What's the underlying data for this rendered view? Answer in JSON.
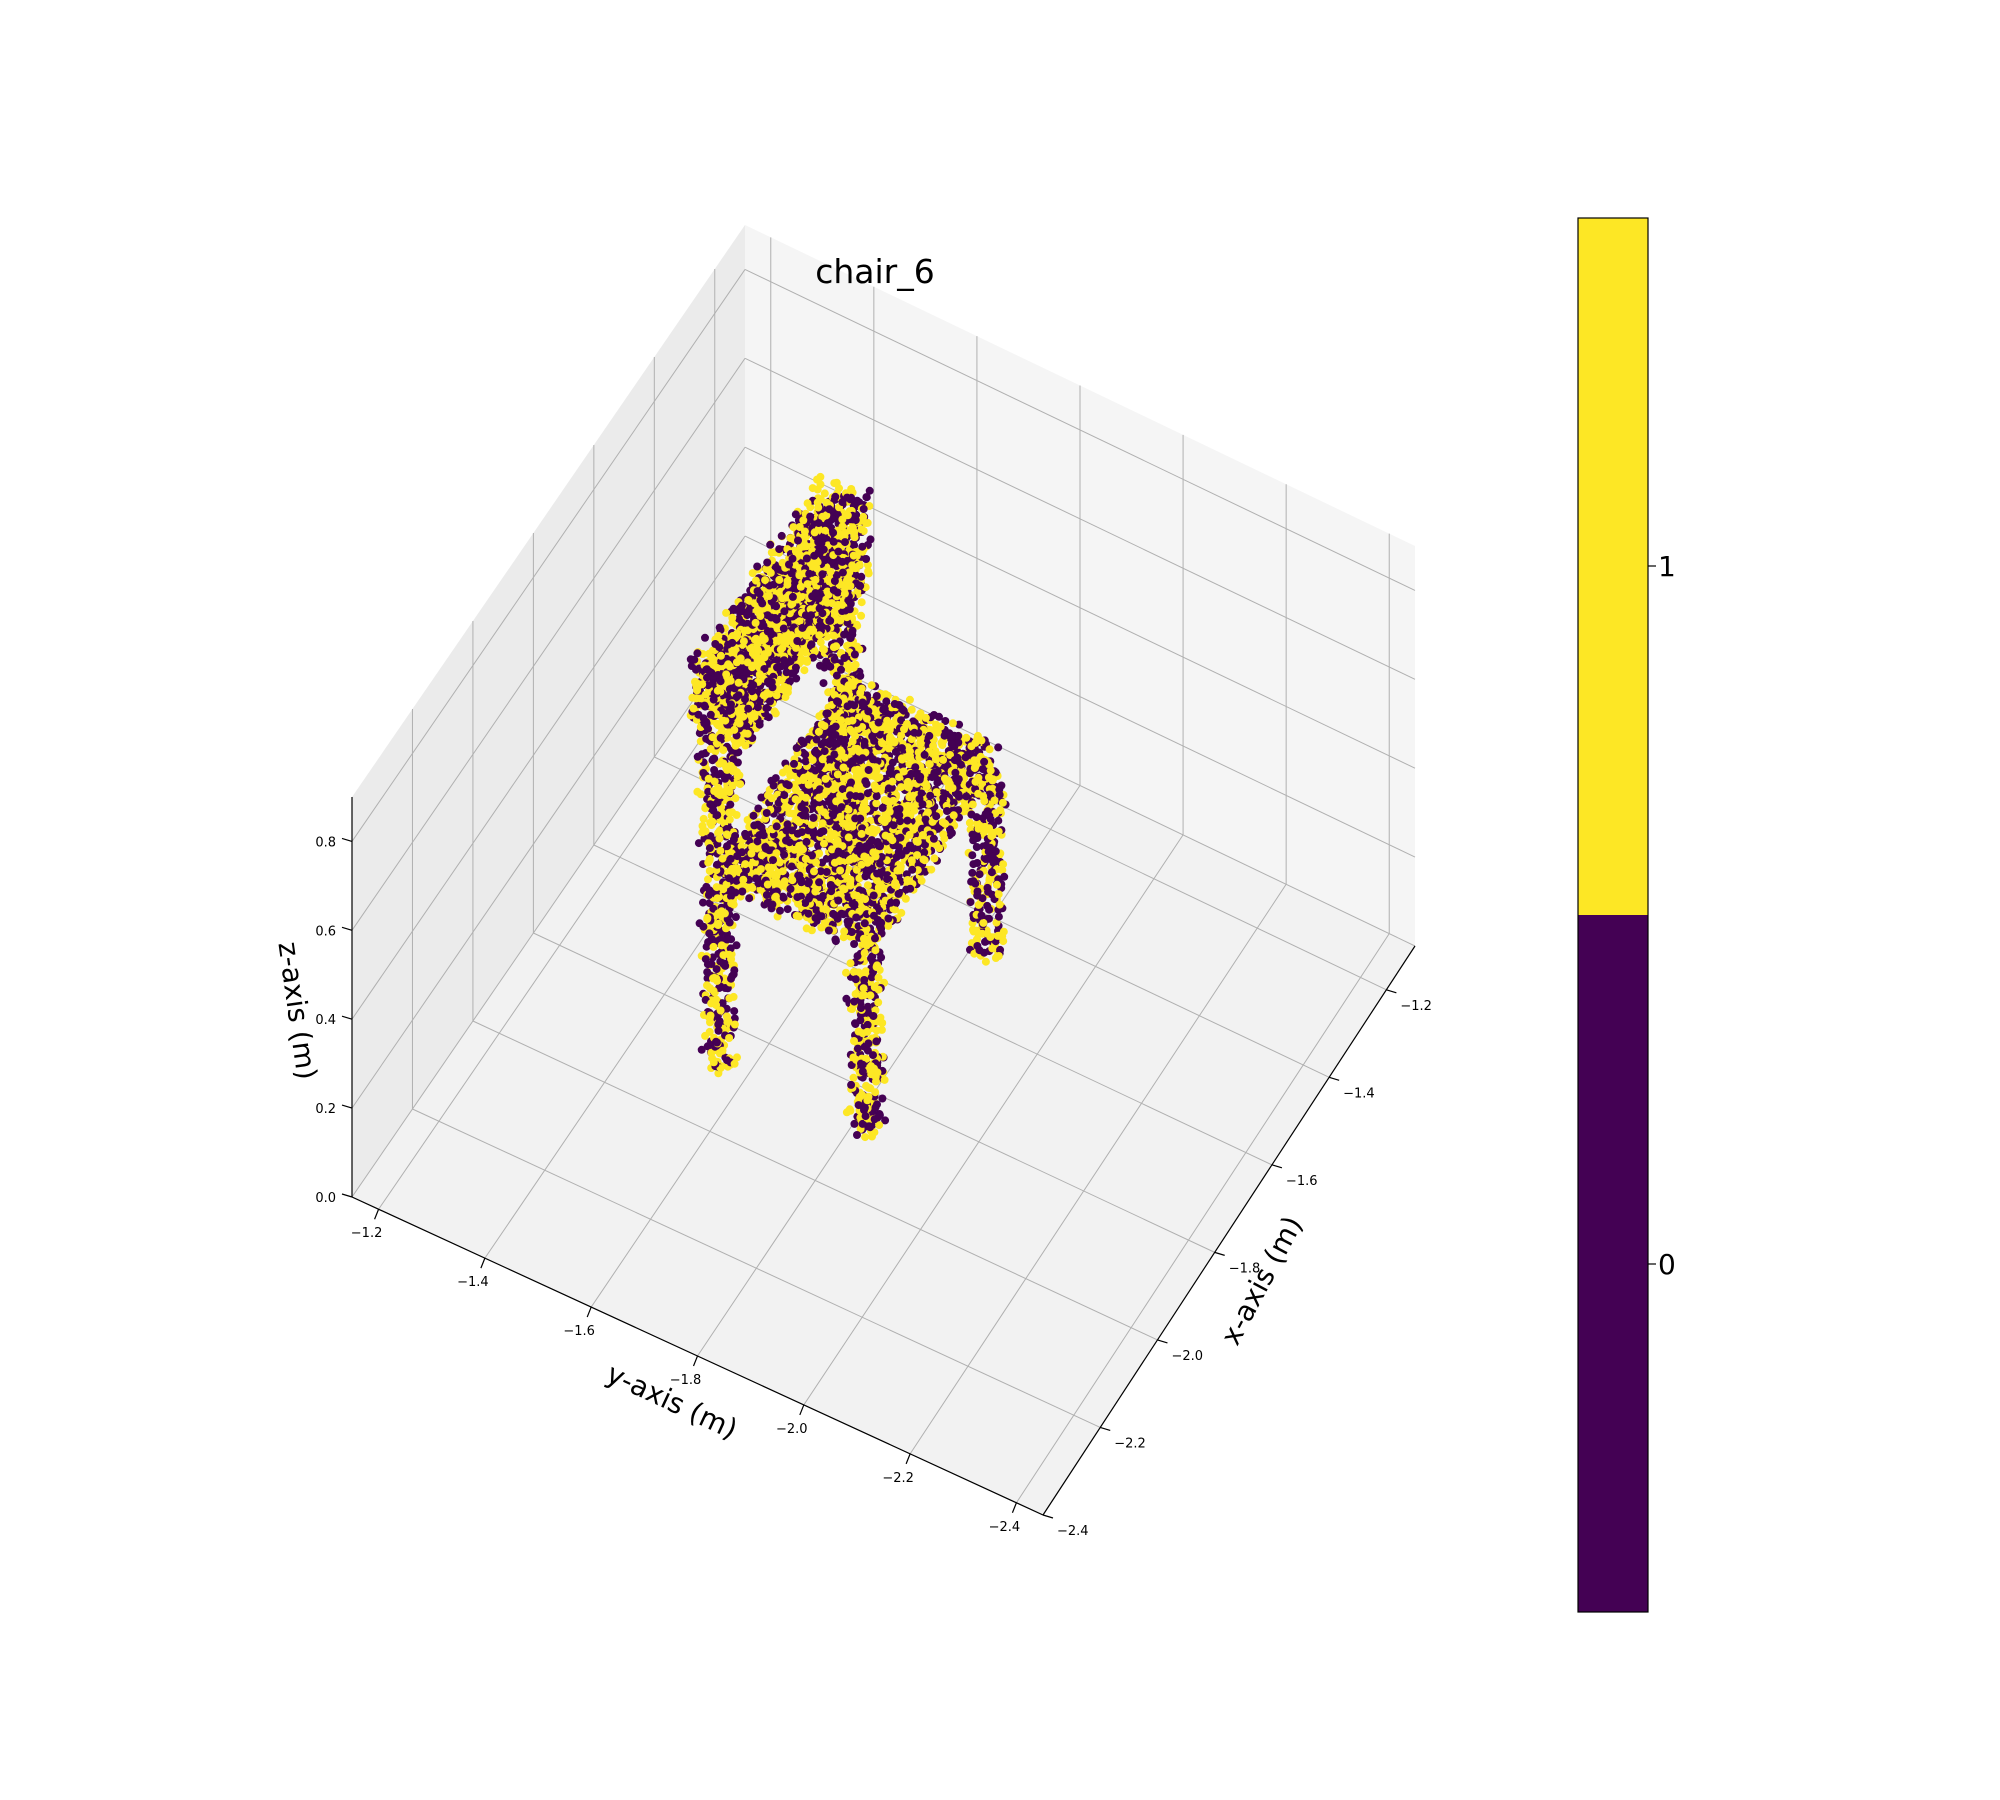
{
  "chart_data": {
    "type": "scatter",
    "projection": "3d",
    "title": "chair_6",
    "xlabel": "x-axis (m)",
    "ylabel": "y-axis (m)",
    "zlabel": "z-axis (m)",
    "xlim": [
      -2.4,
      -1.1
    ],
    "ylim": [
      -2.45,
      -1.15
    ],
    "zlim": [
      0.0,
      0.9
    ],
    "x_ticks": [
      -2.4,
      -2.2,
      -2.0,
      -1.8,
      -1.6,
      -1.4,
      -1.2
    ],
    "x_tick_labels": [
      "−2.4",
      "−2.2",
      "−2.0",
      "−1.8",
      "−1.6",
      "−1.4",
      "−1.2"
    ],
    "y_ticks": [
      -1.2,
      -1.4,
      -1.6,
      -1.8,
      -2.0,
      -2.2,
      -2.4
    ],
    "y_tick_labels": [
      "−1.2",
      "−1.4",
      "−1.6",
      "−1.8",
      "−2.0",
      "−2.2",
      "−2.4"
    ],
    "z_ticks": [
      0.0,
      0.2,
      0.4,
      0.6,
      0.8
    ],
    "z_tick_labels": [
      "0.0",
      "0.2",
      "0.4",
      "0.6",
      "0.8"
    ],
    "grid": true,
    "colormap": "viridis",
    "class_colors": {
      "0": "#440154",
      "1": "#fde725"
    },
    "colorbar": {
      "ticks": [
        0,
        1
      ],
      "tick_labels": [
        "0",
        "1"
      ],
      "range": [
        -0.5,
        1.5
      ]
    },
    "object": {
      "name": "chair_6",
      "seat": {
        "x": [
          -1.9,
          -1.45
        ],
        "y": [
          -1.85,
          -1.55
        ],
        "z": [
          0.42,
          0.47
        ]
      },
      "backrest": {
        "x": [
          -1.9,
          -1.45
        ],
        "y": [
          -1.6,
          -1.5
        ],
        "z": [
          0.7,
          0.9
        ]
      },
      "back_posts": {
        "y": [
          -1.58,
          -1.52
        ],
        "z": [
          0.45,
          0.7
        ],
        "x": [
          -1.88,
          -1.47
        ]
      },
      "legs": [
        {
          "x": -1.88,
          "y": -1.83,
          "z": [
            0.0,
            0.42
          ]
        },
        {
          "x": -1.47,
          "y": -1.83,
          "z": [
            0.0,
            0.42
          ]
        },
        {
          "x": -1.88,
          "y": -1.55,
          "z": [
            0.0,
            0.42
          ]
        },
        {
          "x": -1.47,
          "y": -1.55,
          "z": [
            0.0,
            0.42
          ]
        }
      ]
    }
  }
}
